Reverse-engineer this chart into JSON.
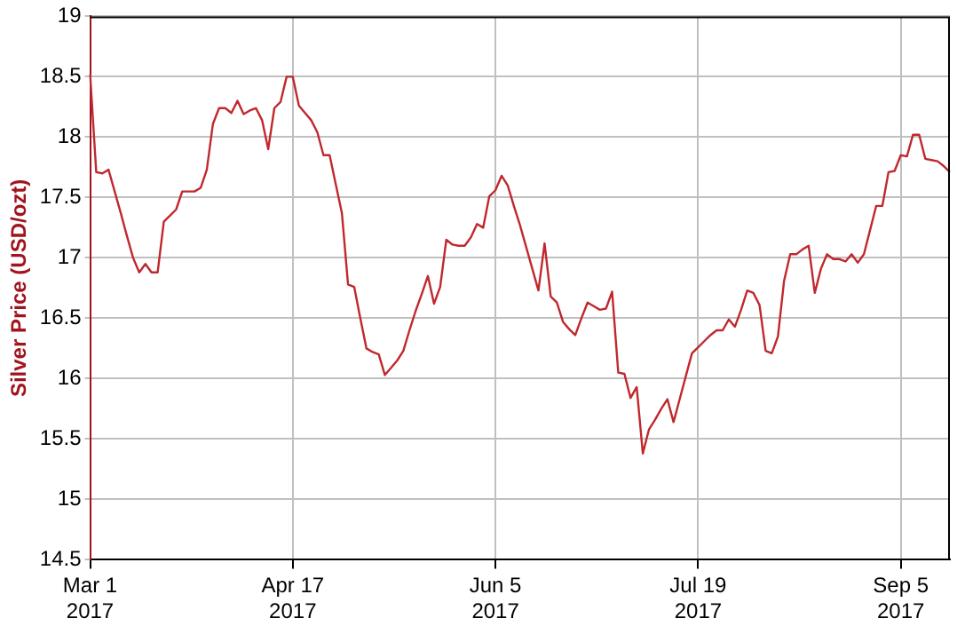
{
  "chart_data": {
    "type": "line",
    "ylabel": "Silver Price (USD/ozt)",
    "categories": [
      "Mar 1\n2017",
      null,
      null,
      null,
      null,
      null,
      null,
      null,
      null,
      null,
      null,
      null,
      null,
      null,
      null,
      null,
      null,
      null,
      null,
      null,
      null,
      null,
      null,
      null,
      null,
      null,
      null,
      null,
      null,
      null,
      null,
      null,
      null,
      "Apr 17\n2017",
      null,
      null,
      null,
      null,
      null,
      null,
      null,
      null,
      null,
      null,
      null,
      null,
      null,
      null,
      null,
      null,
      null,
      null,
      null,
      null,
      null,
      null,
      null,
      null,
      null,
      null,
      null,
      null,
      null,
      null,
      null,
      null,
      "Jun 5\n2017",
      null,
      null,
      null,
      null,
      null,
      null,
      null,
      null,
      null,
      null,
      null,
      null,
      null,
      null,
      null,
      null,
      null,
      null,
      null,
      null,
      null,
      null,
      null,
      null,
      null,
      null,
      null,
      null,
      null,
      null,
      null,
      null,
      "Jul 19\n2017",
      null,
      null,
      null,
      null,
      null,
      null,
      null,
      null,
      null,
      null,
      null,
      null,
      null,
      null,
      null,
      null,
      null,
      null,
      null,
      null,
      null,
      null,
      null,
      null,
      null,
      null,
      null,
      null,
      null,
      null,
      null,
      null,
      "Sep 5\n2017",
      null,
      null,
      null,
      null,
      null,
      null,
      null,
      null
    ],
    "series": [
      {
        "color": "#c0282d",
        "values": [
          18.52,
          17.71,
          17.7,
          17.73,
          17.55,
          17.37,
          17.18,
          17.0,
          16.88,
          16.95,
          16.88,
          16.88,
          17.3,
          17.35,
          17.4,
          17.55,
          17.55,
          17.55,
          17.58,
          17.73,
          18.11,
          18.24,
          18.24,
          18.2,
          18.3,
          18.19,
          18.22,
          18.24,
          18.14,
          17.9,
          18.24,
          18.29,
          18.5,
          18.5,
          18.26,
          18.2,
          18.14,
          18.04,
          17.85,
          17.85,
          17.61,
          17.37,
          16.78,
          16.76,
          16.5,
          16.25,
          16.22,
          16.2,
          16.03,
          16.09,
          16.15,
          16.23,
          16.4,
          16.56,
          16.7,
          16.85,
          16.62,
          16.76,
          17.15,
          17.11,
          17.1,
          17.1,
          17.17,
          17.28,
          17.25,
          17.51,
          17.56,
          17.68,
          17.6,
          17.43,
          17.27,
          17.09,
          16.91,
          16.73,
          17.12,
          16.68,
          16.63,
          16.47,
          16.41,
          16.36,
          16.5,
          16.63,
          16.6,
          16.57,
          16.58,
          16.72,
          16.05,
          16.04,
          15.84,
          15.93,
          15.38,
          15.58,
          15.66,
          15.75,
          15.83,
          15.64,
          15.83,
          16.02,
          16.21,
          16.26,
          16.31,
          16.36,
          16.4,
          16.4,
          16.49,
          16.43,
          16.57,
          16.73,
          16.71,
          16.61,
          16.23,
          16.21,
          16.35,
          16.81,
          17.03,
          17.03,
          17.07,
          17.1,
          16.71,
          16.91,
          17.03,
          16.99,
          16.99,
          16.97,
          17.03,
          16.96,
          17.03,
          17.23,
          17.43,
          17.43,
          17.71,
          17.72,
          17.85,
          17.84,
          18.02,
          18.02,
          17.82,
          17.81,
          17.8,
          17.76,
          17.71
        ]
      }
    ],
    "ylim": [
      14.5,
      19
    ],
    "yticks": [
      14.5,
      15,
      15.5,
      16,
      16.5,
      17,
      17.5,
      18,
      18.5,
      19
    ],
    "grid": true,
    "legend": false,
    "marker": "none",
    "line_style": "solid"
  }
}
